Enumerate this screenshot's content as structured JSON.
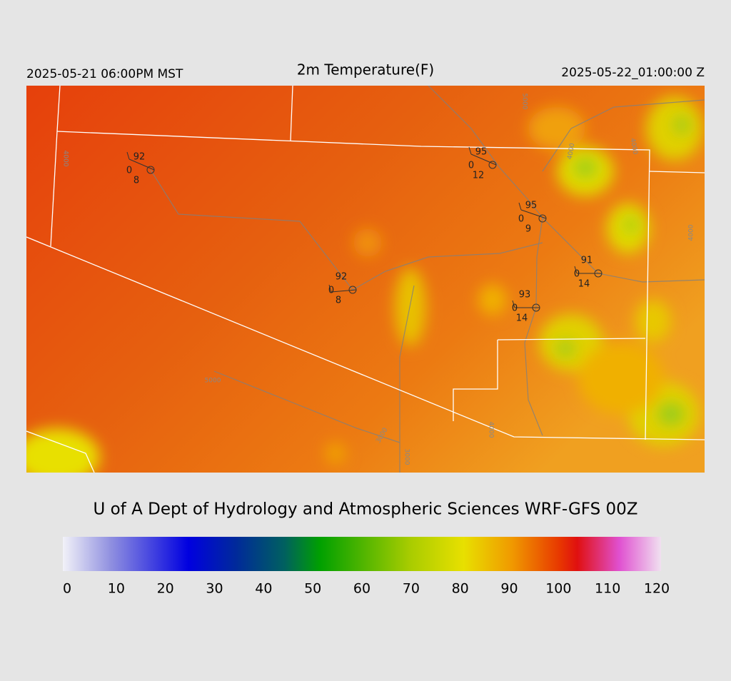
{
  "header": {
    "left": "2025-05-21 06:00PM MST",
    "title": "2m Temperature(F)",
    "right": "2025-05-22_01:00:00 Z"
  },
  "stations": [
    {
      "temperature": 92,
      "dewpoint": 0,
      "wind": 8
    },
    {
      "temperature": 95,
      "dewpoint": 0,
      "wind": 12
    },
    {
      "temperature": 95,
      "dewpoint": 0,
      "wind": 9
    },
    {
      "temperature": 91,
      "dewpoint": 0,
      "wind": 14
    },
    {
      "temperature": 92,
      "dewpoint": 0,
      "wind": 8
    },
    {
      "temperature": 93,
      "dewpoint": 0,
      "wind": 14
    }
  ],
  "contour_labels": [
    "4000",
    "5000",
    "4000",
    "4000",
    "5000",
    "3000",
    "4000",
    "3000",
    "4000"
  ],
  "credit": "U of A Dept of Hydrology and Atmospheric Sciences WRF-GFS 00Z",
  "colorbar": {
    "range": [
      0,
      120
    ],
    "ticks": [
      0,
      10,
      20,
      30,
      40,
      50,
      60,
      70,
      80,
      90,
      100,
      110,
      120
    ]
  }
}
